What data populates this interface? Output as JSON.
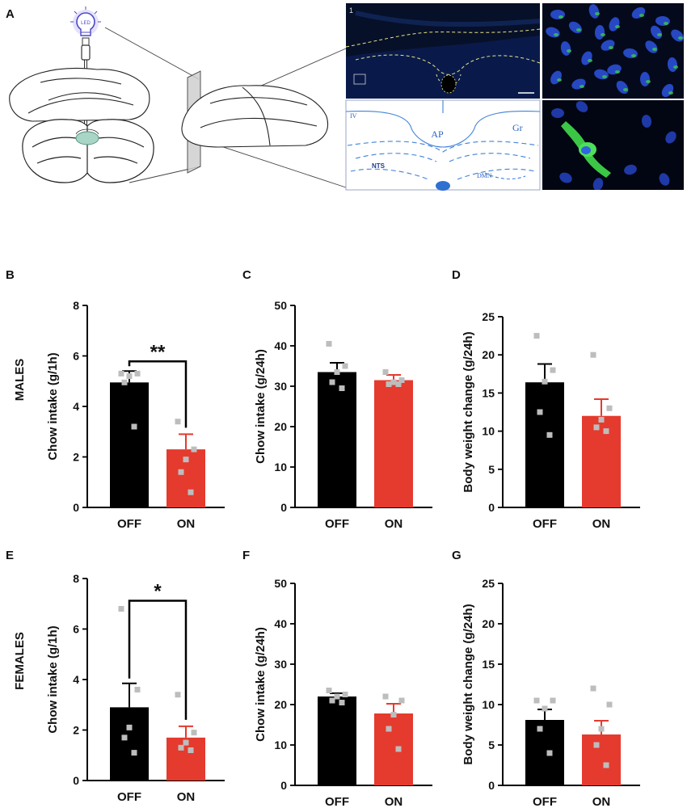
{
  "panel_letters": {
    "a": "A",
    "b": "B",
    "c": "C",
    "d": "D",
    "e": "E",
    "f": "F",
    "g": "G"
  },
  "row_labels": {
    "males": "MALES",
    "females": "FEMALES"
  },
  "atlas_labels": {
    "ap": "AP",
    "gr": "Gr",
    "nts": "NTS",
    "dmn": "DMN",
    "iv": "IV",
    "inset_number": "1"
  },
  "colors": {
    "off": "#000000",
    "on": "#e53a2e",
    "dots": "#bdbdbd",
    "atlas": "#2b64c0",
    "micro_green": "#3fd14a",
    "micro_blue": "#2a4fd8"
  },
  "chart_data": [
    {
      "id": "B",
      "type": "bar",
      "ylabel": "Chow intake (g/1h)",
      "ylim": [
        0,
        8
      ],
      "yticks": [
        0,
        2,
        4,
        6,
        8
      ],
      "categories": [
        "OFF",
        "ON"
      ],
      "values": [
        4.95,
        2.3
      ],
      "sem": [
        0.45,
        0.6
      ],
      "points": [
        [
          5.3,
          5.3,
          5.2,
          4.95,
          3.2
        ],
        [
          3.4,
          2.3,
          1.9,
          1.4,
          0.6
        ]
      ],
      "significance": "**"
    },
    {
      "id": "C",
      "type": "bar",
      "ylabel": "Chow intake (g/24h)",
      "ylim": [
        0,
        50
      ],
      "yticks": [
        0,
        10,
        20,
        30,
        40,
        50
      ],
      "categories": [
        "OFF",
        "ON"
      ],
      "values": [
        33.5,
        31.5
      ],
      "sem": [
        2.3,
        1.3
      ],
      "points": [
        [
          40.5,
          35,
          33.5,
          31,
          29.5
        ],
        [
          33.5,
          31.5,
          31,
          30.5,
          30.5
        ]
      ]
    },
    {
      "id": "D",
      "type": "bar",
      "ylabel": "Body weight change (g/24h)",
      "ylim": [
        0,
        25
      ],
      "yticks": [
        0,
        5,
        10,
        15,
        20,
        25
      ],
      "categories": [
        "OFF",
        "ON"
      ],
      "values": [
        16.4,
        12.0
      ],
      "sem": [
        2.4,
        2.2
      ],
      "points": [
        [
          22.5,
          18,
          16.5,
          12.5,
          9.5
        ],
        [
          20,
          13,
          11.5,
          10.5,
          10
        ]
      ]
    },
    {
      "id": "E",
      "type": "bar",
      "ylabel": "Chow intake (g/1h)",
      "ylim": [
        0,
        8
      ],
      "yticks": [
        0,
        2,
        4,
        6,
        8
      ],
      "categories": [
        "OFF",
        "ON"
      ],
      "values": [
        2.9,
        1.7
      ],
      "sem": [
        0.95,
        0.45
      ],
      "points": [
        [
          6.8,
          3.6,
          2.1,
          1.7,
          1.1
        ],
        [
          3.4,
          1.9,
          1.5,
          1.3,
          1.2
        ]
      ],
      "significance": "*"
    },
    {
      "id": "F",
      "type": "bar",
      "ylabel": "Chow intake (g/24h)",
      "ylim": [
        0,
        50
      ],
      "yticks": [
        0,
        10,
        20,
        30,
        40,
        50
      ],
      "categories": [
        "OFF",
        "ON"
      ],
      "values": [
        22.0,
        17.8
      ],
      "sem": [
        0.8,
        2.4
      ],
      "points": [
        [
          23.5,
          22.5,
          22,
          21,
          20.5
        ],
        [
          22,
          21,
          17.5,
          14,
          9
        ]
      ]
    },
    {
      "id": "G",
      "type": "bar",
      "ylabel": "Body weight change (g/24h)",
      "ylim": [
        0,
        25
      ],
      "yticks": [
        0,
        5,
        10,
        15,
        20,
        25
      ],
      "categories": [
        "OFF",
        "ON"
      ],
      "values": [
        8.1,
        6.3
      ],
      "sem": [
        1.3,
        1.7
      ],
      "points": [
        [
          10.5,
          10.5,
          9.5,
          7,
          4
        ],
        [
          12,
          10,
          7,
          5,
          2.5
        ]
      ]
    }
  ]
}
